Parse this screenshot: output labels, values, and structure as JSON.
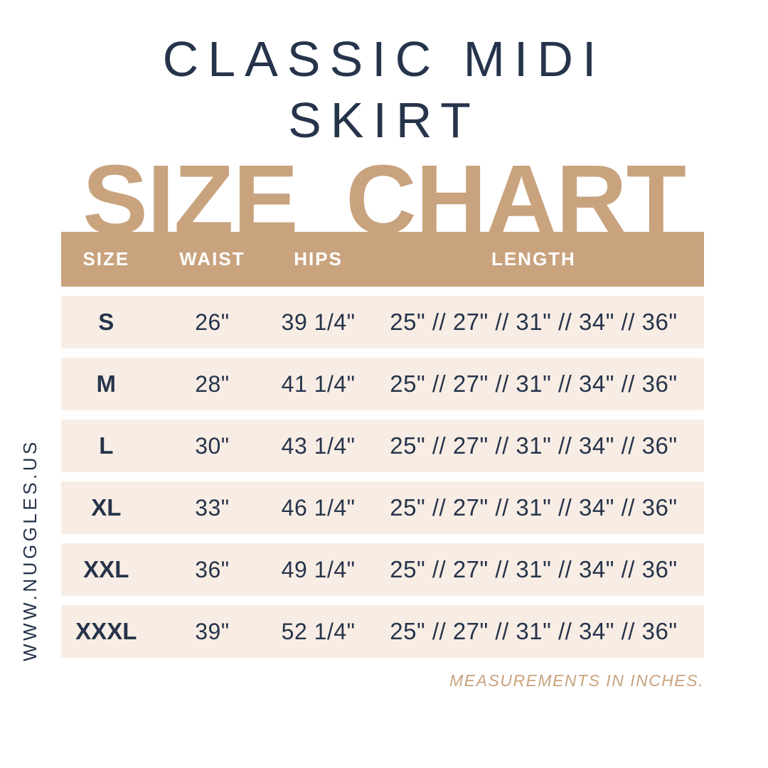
{
  "header": {
    "title_line1": "CLASSIC MIDI",
    "title_line2": "SKIRT",
    "size_chart_heading": "SIZE CHART"
  },
  "footer": {
    "website": "WWW.NUGGLES.US",
    "footnote": "MEASUREMENTS IN INCHES."
  },
  "colors": {
    "tan": "#C9A37E",
    "cream": "#F8EDE4",
    "navy": "#26344B",
    "header_text": "#FFFFFF",
    "background": "#FFFFFF"
  },
  "chart_data": {
    "type": "table",
    "title": "SIZE CHART",
    "columns": [
      "SIZE",
      "WAIST",
      "HIPS",
      "LENGTH"
    ],
    "rows": [
      {
        "size": "S",
        "waist": "26\"",
        "hips": "39 1/4\"",
        "length": "25\" // 27\" // 31\" // 34\" // 36\""
      },
      {
        "size": "M",
        "waist": "28\"",
        "hips": "41 1/4\"",
        "length": "25\" // 27\" // 31\" // 34\" // 36\""
      },
      {
        "size": "L",
        "waist": "30\"",
        "hips": "43 1/4\"",
        "length": "25\" // 27\" // 31\" // 34\" // 36\""
      },
      {
        "size": "XL",
        "waist": "33\"",
        "hips": "46 1/4\"",
        "length": "25\" // 27\" // 31\" // 34\" // 36\""
      },
      {
        "size": "XXL",
        "waist": "36\"",
        "hips": "49 1/4\"",
        "length": "25\" // 27\" // 31\" // 34\" // 36\""
      },
      {
        "size": "XXXL",
        "waist": "39\"",
        "hips": "52 1/4\"",
        "length": "25\" // 27\" // 31\" // 34\" // 36\""
      }
    ],
    "units_note": "MEASUREMENTS IN INCHES."
  }
}
